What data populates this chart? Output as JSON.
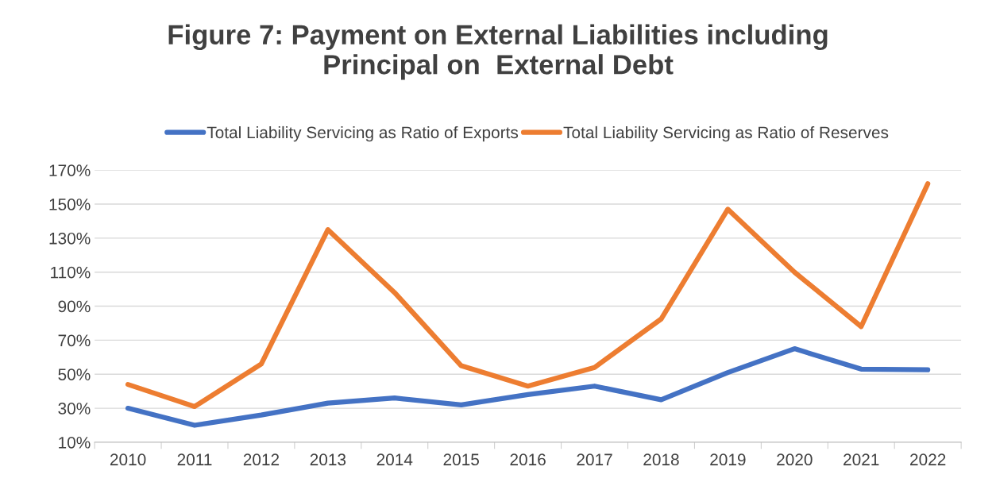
{
  "chart_data": {
    "type": "line",
    "title": "Figure 7: Payment on External Liabilities including\nPrincipal on  External Debt",
    "categories": [
      "2010",
      "2011",
      "2012",
      "2013",
      "2014",
      "2015",
      "2016",
      "2017",
      "2018",
      "2019",
      "2020",
      "2021",
      "2022"
    ],
    "series": [
      {
        "name": "Total Liability Servicing as Ratio of Exports",
        "color": "#4472c4",
        "values": [
          30,
          20,
          26,
          33,
          36,
          32,
          38,
          43,
          35,
          51,
          65,
          53,
          52.6
        ]
      },
      {
        "name": "Total Liability Servicing as Ratio of Reserves",
        "color": "#ed7d31",
        "values": [
          44,
          31,
          56,
          135,
          98,
          55,
          43,
          54,
          82.5,
          147,
          110,
          78,
          162
        ]
      }
    ],
    "ylim": [
      10,
      170
    ],
    "yticks": [
      {
        "value": 10,
        "label": "10%"
      },
      {
        "value": 30,
        "label": "30%"
      },
      {
        "value": 50,
        "label": "50%"
      },
      {
        "value": 70,
        "label": "70%"
      },
      {
        "value": 90,
        "label": "90%"
      },
      {
        "value": 110,
        "label": "110%"
      },
      {
        "value": 130,
        "label": "130%"
      },
      {
        "value": 150,
        "label": "150%"
      },
      {
        "value": 170,
        "label": "170%"
      }
    ],
    "grid": "y",
    "legend": "top",
    "marker": "none",
    "line_style": "solid"
  }
}
